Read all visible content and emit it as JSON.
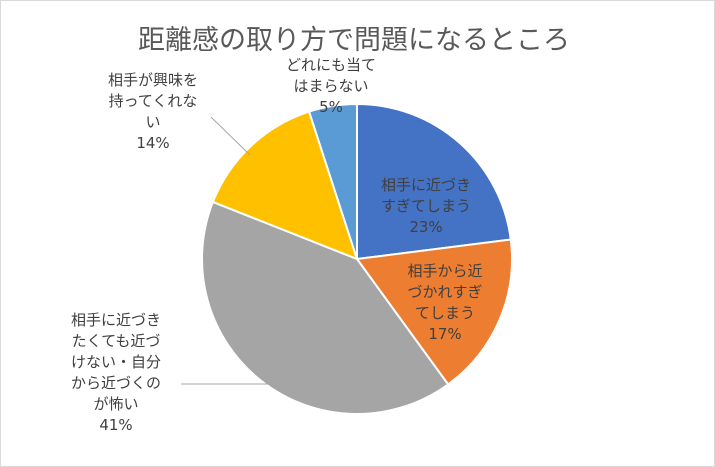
{
  "chart_data": {
    "type": "pie",
    "title": "距離感の取り方で問題になるところ",
    "start_angle_deg": 0,
    "direction": "clockwise",
    "slices": [
      {
        "lines": [
          "相手に近づき",
          "すぎてしまう"
        ],
        "value": 23,
        "pct": "23%",
        "color": "#4472C4"
      },
      {
        "lines": [
          "相手から近",
          "づかれすぎ",
          "てしまう"
        ],
        "value": 17,
        "pct": "17%",
        "color": "#ED7D31"
      },
      {
        "lines": [
          "相手に近づき",
          "たくても近づ",
          "けない・自分",
          "から近づくの",
          "が怖い"
        ],
        "value": 41,
        "pct": "41%",
        "color": "#A5A5A5"
      },
      {
        "lines": [
          "相手が興味を",
          "持ってくれな",
          "い"
        ],
        "value": 14,
        "pct": "14%",
        "color": "#FFC000"
      },
      {
        "lines": [
          "どれにも当て",
          "はまらない"
        ],
        "value": 5,
        "pct": "5%",
        "color": "#5B9BD5"
      }
    ]
  }
}
